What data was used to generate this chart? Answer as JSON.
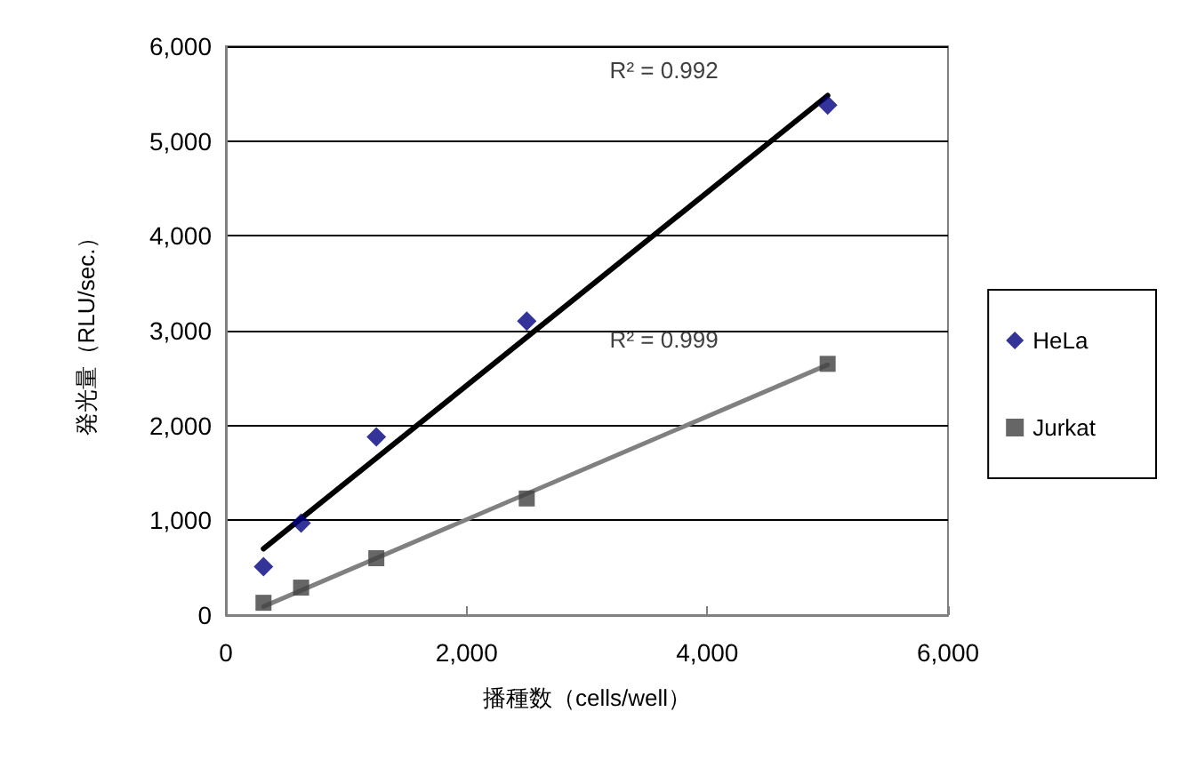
{
  "chart_data": {
    "type": "scatter",
    "xlabel": "播種数（cells/well）",
    "ylabel": "発光量（RLU/sec.）",
    "xlim": [
      0,
      6000
    ],
    "xticks": [
      {
        "value": 0,
        "label": "0"
      },
      {
        "value": 2000,
        "label": "2,000"
      },
      {
        "value": 4000,
        "label": "4,000"
      },
      {
        "value": 6000,
        "label": "6,000"
      }
    ],
    "ylim": [
      0,
      6000
    ],
    "yticks": [
      {
        "value": 0,
        "label": "0"
      },
      {
        "value": 1000,
        "label": "1,000"
      },
      {
        "value": 2000,
        "label": "2,000"
      },
      {
        "value": 3000,
        "label": "3,000"
      },
      {
        "value": 4000,
        "label": "4,000"
      },
      {
        "value": 5000,
        "label": "5,000"
      },
      {
        "value": 6000,
        "label": "6,000"
      }
    ],
    "grid": "y",
    "legend": "right",
    "series": [
      {
        "name": "HeLa",
        "marker": "diamond",
        "color": "#000080",
        "x": [
          312.5,
          625,
          1250,
          2500,
          5000
        ],
        "values": [
          510,
          970,
          1880,
          3100,
          5380
        ]
      },
      {
        "name": "Jurkat",
        "marker": "square",
        "color": "#404040",
        "x": [
          312.5,
          625,
          1250,
          2500,
          5000
        ],
        "values": [
          130,
          290,
          600,
          1230,
          2650
        ]
      },
      {
        "type": "line",
        "marker": "none",
        "color": "#000000",
        "x": [
          312.5,
          5000
        ],
        "values": [
          700,
          5480
        ]
      },
      {
        "type": "line",
        "marker": "none",
        "color": "#808080",
        "x": [
          312.5,
          5000
        ],
        "values": [
          90,
          2640
        ]
      }
    ],
    "annotations": [
      "R² = 0.992",
      "R² = 0.999"
    ]
  }
}
